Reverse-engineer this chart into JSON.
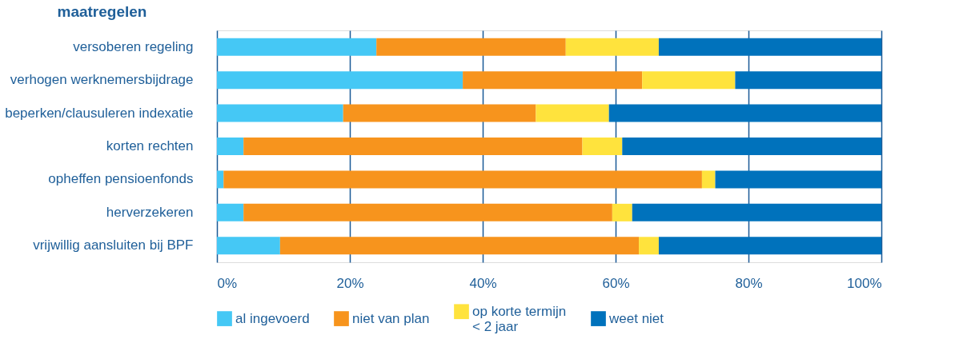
{
  "chart_data": {
    "type": "bar",
    "orientation": "horizontal",
    "stacked": true,
    "ylabel": "maatregelen",
    "categories": [
      "versoberen regeling",
      "verhogen werknemersbijdrage",
      "beperken/clausuleren indexatie",
      "korten rechten",
      "opheffen pensioenfonds",
      "herverzekeren",
      "vrijwillig aansluiten bij BPF"
    ],
    "series": [
      {
        "name": "al ingevoerd",
        "color": "#45c8f5",
        "values": [
          24,
          37,
          19,
          4,
          1,
          4,
          9.5
        ]
      },
      {
        "name": "niet van plan",
        "color": "#f7941d",
        "values": [
          28.5,
          27,
          29,
          51,
          72,
          55.5,
          54
        ]
      },
      {
        "name": "op korte termijn\n< 2 jaar",
        "color": "#ffe33d",
        "values": [
          14,
          14,
          11,
          6,
          2,
          3,
          3
        ]
      },
      {
        "name": "weet niet",
        "color": "#0072bc",
        "values": [
          33.5,
          22,
          41,
          39,
          25,
          37.5,
          33.5
        ]
      }
    ],
    "xlim": [
      0,
      100
    ],
    "xticks": [
      {
        "value": 0,
        "label": "0%"
      },
      {
        "value": 20,
        "label": "20%"
      },
      {
        "value": 40,
        "label": "40%"
      },
      {
        "value": 60,
        "label": "60%"
      },
      {
        "value": 80,
        "label": "80%"
      },
      {
        "value": 100,
        "label": "100%"
      }
    ],
    "grid": "x",
    "legend": "bottom"
  }
}
